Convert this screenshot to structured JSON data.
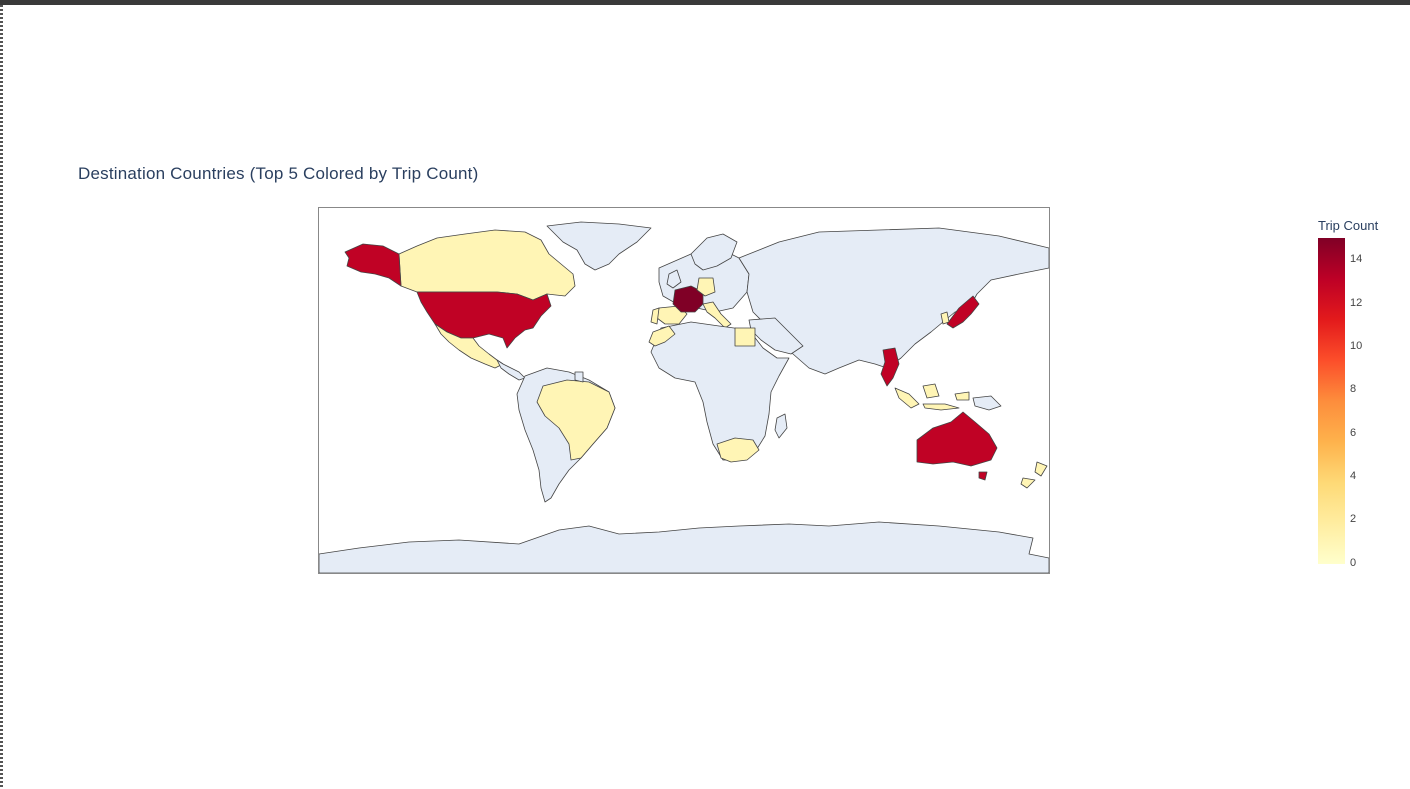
{
  "title": "Destination Countries (Top 5 Colored by Trip Count)",
  "colorbar": {
    "title": "Trip Count",
    "ticks": [
      "14",
      "12",
      "10",
      "8",
      "6",
      "4",
      "2",
      "0"
    ],
    "colorscale": [
      "#ffffcc",
      "#ffeda0",
      "#fed976",
      "#feb24c",
      "#fd8d3c",
      "#fc4e2a",
      "#e31a1c",
      "#bd0026",
      "#800026"
    ]
  },
  "land_color": "#e5ecf6",
  "border_color": "#444444",
  "chart_data": {
    "type": "choropleth",
    "zmin": 0,
    "zmax": 15,
    "locations": [
      {
        "country": "France",
        "value": 15
      },
      {
        "country": "United States",
        "value": 13
      },
      {
        "country": "Japan",
        "value": 13
      },
      {
        "country": "Australia",
        "value": 13
      },
      {
        "country": "Thailand",
        "value": 13
      },
      {
        "country": "Canada",
        "value": 1
      },
      {
        "country": "Mexico",
        "value": 1
      },
      {
        "country": "Brazil",
        "value": 1
      },
      {
        "country": "Spain",
        "value": 1
      },
      {
        "country": "Italy",
        "value": 1
      },
      {
        "country": "Germany",
        "value": 1
      },
      {
        "country": "Egypt",
        "value": 1
      },
      {
        "country": "South Africa",
        "value": 1
      },
      {
        "country": "Indonesia",
        "value": 1
      },
      {
        "country": "South Korea",
        "value": 1
      },
      {
        "country": "New Zealand",
        "value": 1
      },
      {
        "country": "Portugal",
        "value": 1
      },
      {
        "country": "Morocco",
        "value": 1
      }
    ]
  }
}
